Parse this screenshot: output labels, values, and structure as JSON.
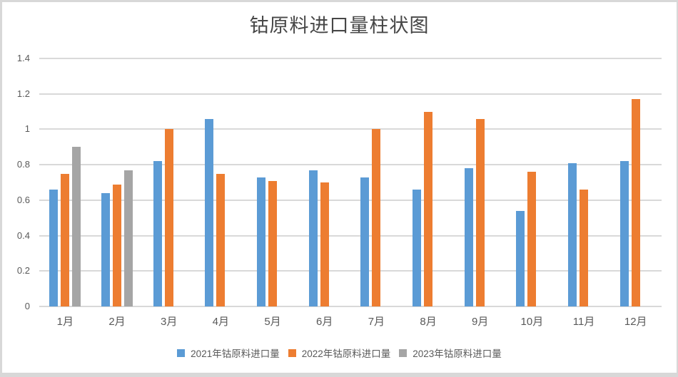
{
  "chart_data": {
    "type": "bar",
    "title": "钴原料进口量柱状图",
    "categories": [
      "1月",
      "2月",
      "3月",
      "4月",
      "5月",
      "6月",
      "7月",
      "8月",
      "9月",
      "10月",
      "11月",
      "12月"
    ],
    "series": [
      {
        "name": "2021年钴原料进口量",
        "color": "#5B9BD5",
        "values": [
          0.66,
          0.64,
          0.82,
          1.06,
          0.73,
          0.77,
          0.73,
          0.66,
          0.78,
          0.54,
          0.81,
          0.82
        ]
      },
      {
        "name": "2022年钴原料进口量",
        "color": "#ED7D31",
        "values": [
          0.75,
          0.69,
          1.0,
          0.75,
          0.71,
          0.7,
          1.0,
          1.1,
          1.06,
          0.76,
          0.66,
          1.17
        ]
      },
      {
        "name": "2023年钴原料进口量",
        "color": "#A5A5A5",
        "values": [
          0.9,
          0.77,
          null,
          null,
          null,
          null,
          null,
          null,
          null,
          null,
          null,
          null
        ]
      }
    ],
    "ylim": [
      0,
      1.4
    ],
    "ytick_step": 0.2,
    "ytick_labels": [
      "0",
      "0.2",
      "0.4",
      "0.6",
      "0.8",
      "1",
      "1.2",
      "1.4"
    ],
    "grid": true,
    "legend_position": "bottom"
  },
  "colors": {
    "gridline": "#D9D9D9",
    "axis_text": "#595959",
    "title_text": "#474747",
    "frame": "#D8D8D8",
    "background": "#FFFFFF"
  }
}
